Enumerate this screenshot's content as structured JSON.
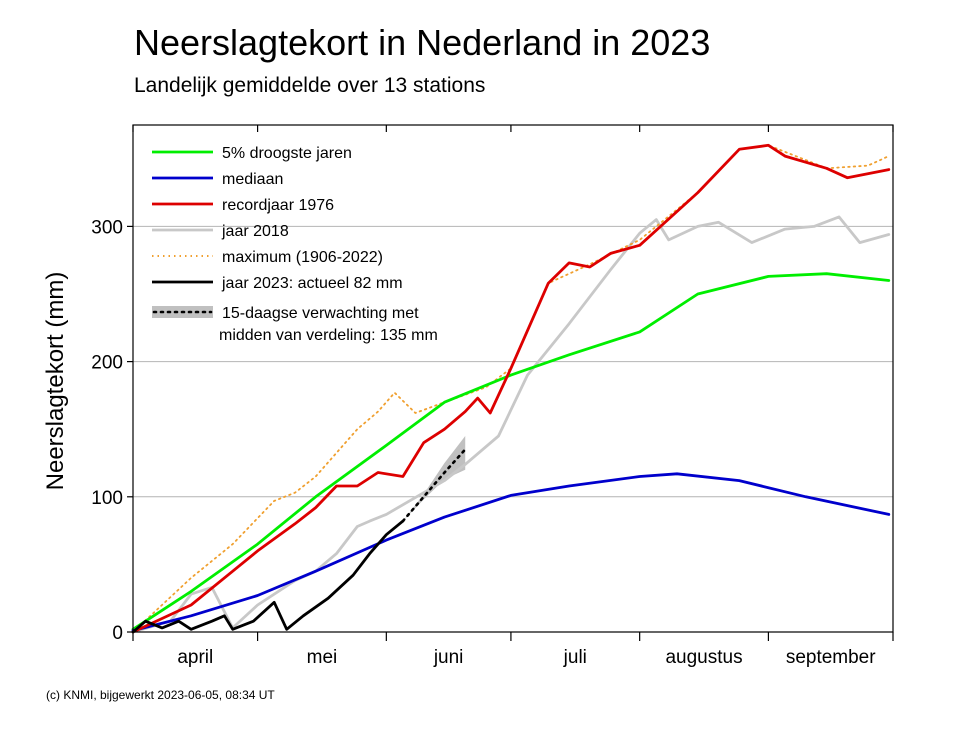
{
  "title": "Neerslagtekort in Nederland in 2023",
  "subtitle": "Landelijk gemiddelde over 13 stations",
  "credit": "(c) KNMI, bijgewerkt 2023-06-05, 08:34 UT",
  "chart_data": {
    "type": "line",
    "ylabel": "Neerslagtekort (mm)",
    "xlabel": "",
    "x_unit": "day of year (1 Apr - 30 Sep)",
    "xlim": [
      "2023-04-01",
      "2023-09-30"
    ],
    "ylim": [
      0,
      375
    ],
    "yticks": [
      0,
      100,
      200,
      300
    ],
    "month_labels": [
      "april",
      "mei",
      "juni",
      "juli",
      "augustus",
      "september"
    ],
    "grid": true,
    "legend_position": "top-left",
    "series": [
      {
        "name": "5% droogste jaren",
        "color": "#00ee00",
        "style": "solid",
        "points": [
          [
            "2023-04-01",
            2
          ],
          [
            "2023-04-15",
            30
          ],
          [
            "2023-05-01",
            65
          ],
          [
            "2023-05-15",
            100
          ],
          [
            "2023-06-01",
            138
          ],
          [
            "2023-06-15",
            170
          ],
          [
            "2023-07-01",
            190
          ],
          [
            "2023-07-15",
            205
          ],
          [
            "2023-08-01",
            222
          ],
          [
            "2023-08-15",
            250
          ],
          [
            "2023-09-01",
            263
          ],
          [
            "2023-09-15",
            265
          ],
          [
            "2023-09-30",
            260
          ]
        ]
      },
      {
        "name": "mediaan",
        "color": "#0000cc",
        "style": "solid",
        "points": [
          [
            "2023-04-01",
            1
          ],
          [
            "2023-04-15",
            12
          ],
          [
            "2023-05-01",
            27
          ],
          [
            "2023-05-15",
            45
          ],
          [
            "2023-06-01",
            68
          ],
          [
            "2023-06-15",
            85
          ],
          [
            "2023-07-01",
            101
          ],
          [
            "2023-07-15",
            108
          ],
          [
            "2023-08-01",
            115
          ],
          [
            "2023-08-10",
            117
          ],
          [
            "2023-08-25",
            112
          ],
          [
            "2023-09-10",
            100
          ],
          [
            "2023-09-30",
            87
          ]
        ]
      },
      {
        "name": "recordjaar 1976",
        "color": "#dd0000",
        "style": "solid",
        "points": [
          [
            "2023-04-01",
            0
          ],
          [
            "2023-04-15",
            20
          ],
          [
            "2023-04-25",
            45
          ],
          [
            "2023-05-01",
            60
          ],
          [
            "2023-05-10",
            80
          ],
          [
            "2023-05-15",
            92
          ],
          [
            "2023-05-20",
            108
          ],
          [
            "2023-05-25",
            108
          ],
          [
            "2023-05-30",
            118
          ],
          [
            "2023-06-05",
            115
          ],
          [
            "2023-06-10",
            140
          ],
          [
            "2023-06-15",
            150
          ],
          [
            "2023-06-20",
            163
          ],
          [
            "2023-06-23",
            173
          ],
          [
            "2023-06-26",
            162
          ],
          [
            "2023-07-01",
            195
          ],
          [
            "2023-07-10",
            258
          ],
          [
            "2023-07-15",
            273
          ],
          [
            "2023-07-20",
            270
          ],
          [
            "2023-07-25",
            280
          ],
          [
            "2023-08-01",
            286
          ],
          [
            "2023-08-15",
            325
          ],
          [
            "2023-08-25",
            357
          ],
          [
            "2023-09-01",
            360
          ],
          [
            "2023-09-05",
            352
          ],
          [
            "2023-09-15",
            343
          ],
          [
            "2023-09-20",
            336
          ],
          [
            "2023-09-30",
            342
          ]
        ]
      },
      {
        "name": "jaar 2018",
        "color": "#c8c8c8",
        "style": "solid",
        "points": [
          [
            "2023-04-01",
            0
          ],
          [
            "2023-04-10",
            8
          ],
          [
            "2023-04-15",
            28
          ],
          [
            "2023-04-20",
            33
          ],
          [
            "2023-04-25",
            3
          ],
          [
            "2023-05-01",
            20
          ],
          [
            "2023-05-10",
            38
          ],
          [
            "2023-05-15",
            45
          ],
          [
            "2023-05-20",
            58
          ],
          [
            "2023-05-25",
            78
          ],
          [
            "2023-05-28",
            82
          ],
          [
            "2023-06-01",
            87
          ],
          [
            "2023-06-10",
            103
          ],
          [
            "2023-06-15",
            112
          ],
          [
            "2023-06-20",
            124
          ],
          [
            "2023-06-28",
            145
          ],
          [
            "2023-07-05",
            190
          ],
          [
            "2023-07-15",
            228
          ],
          [
            "2023-07-25",
            268
          ],
          [
            "2023-08-01",
            295
          ],
          [
            "2023-08-05",
            305
          ],
          [
            "2023-08-08",
            290
          ],
          [
            "2023-08-15",
            300
          ],
          [
            "2023-08-20",
            303
          ],
          [
            "2023-08-28",
            288
          ],
          [
            "2023-09-05",
            298
          ],
          [
            "2023-09-12",
            300
          ],
          [
            "2023-09-18",
            307
          ],
          [
            "2023-09-23",
            288
          ],
          [
            "2023-09-30",
            294
          ]
        ]
      },
      {
        "name": "maximum (1906-2022)",
        "color": "#f0a030",
        "style": "dotted",
        "points": [
          [
            "2023-04-01",
            0
          ],
          [
            "2023-04-15",
            40
          ],
          [
            "2023-04-25",
            65
          ],
          [
            "2023-05-05",
            97
          ],
          [
            "2023-05-10",
            103
          ],
          [
            "2023-05-15",
            115
          ],
          [
            "2023-05-25",
            150
          ],
          [
            "2023-05-30",
            163
          ],
          [
            "2023-06-03",
            177
          ],
          [
            "2023-06-08",
            162
          ],
          [
            "2023-06-15",
            170
          ],
          [
            "2023-06-25",
            181
          ],
          [
            "2023-07-01",
            195
          ],
          [
            "2023-07-10",
            258
          ],
          [
            "2023-07-20",
            272
          ],
          [
            "2023-08-01",
            290
          ],
          [
            "2023-08-15",
            325
          ],
          [
            "2023-08-25",
            357
          ],
          [
            "2023-09-01",
            360
          ],
          [
            "2023-09-15",
            343
          ],
          [
            "2023-09-25",
            345
          ],
          [
            "2023-09-30",
            352
          ]
        ]
      },
      {
        "name": "jaar 2023: actueel 82 mm",
        "color": "#000000",
        "style": "solid",
        "points": [
          [
            "2023-04-01",
            0
          ],
          [
            "2023-04-04",
            8
          ],
          [
            "2023-04-08",
            3
          ],
          [
            "2023-04-12",
            8
          ],
          [
            "2023-04-15",
            2
          ],
          [
            "2023-04-20",
            8
          ],
          [
            "2023-04-23",
            12
          ],
          [
            "2023-04-25",
            2
          ],
          [
            "2023-04-30",
            8
          ],
          [
            "2023-05-05",
            22
          ],
          [
            "2023-05-08",
            2
          ],
          [
            "2023-05-12",
            12
          ],
          [
            "2023-05-18",
            25
          ],
          [
            "2023-05-24",
            42
          ],
          [
            "2023-05-28",
            58
          ],
          [
            "2023-06-01",
            72
          ],
          [
            "2023-06-05",
            82
          ]
        ]
      }
    ],
    "forecast": {
      "name": "15-daagse verwachting met",
      "name_line2": "midden van verdeling: 135 mm",
      "median": [
        [
          "2023-06-05",
          82
        ],
        [
          "2023-06-10",
          100
        ],
        [
          "2023-06-15",
          118
        ],
        [
          "2023-06-20",
          135
        ]
      ],
      "band_lower": [
        [
          "2023-06-05",
          82
        ],
        [
          "2023-06-10",
          98
        ],
        [
          "2023-06-15",
          113
        ],
        [
          "2023-06-20",
          120
        ]
      ],
      "band_upper": [
        [
          "2023-06-05",
          82
        ],
        [
          "2023-06-10",
          102
        ],
        [
          "2023-06-15",
          125
        ],
        [
          "2023-06-20",
          145
        ]
      ]
    }
  }
}
